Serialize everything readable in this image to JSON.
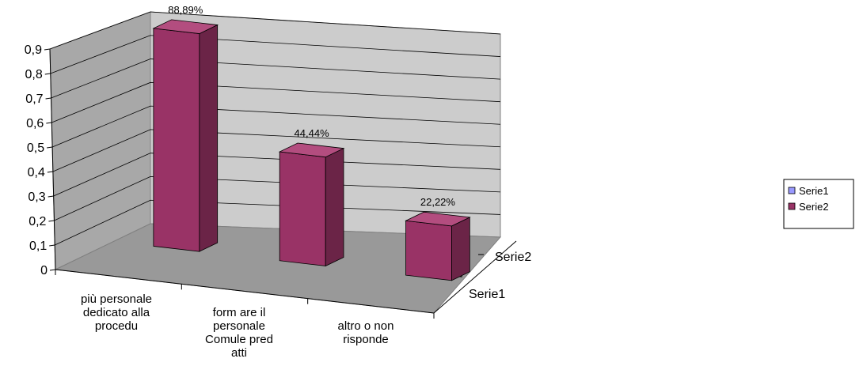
{
  "chart_data": {
    "type": "bar",
    "title": "",
    "xlabel": "",
    "ylabel": "",
    "ylim": [
      0,
      0.9
    ],
    "yticks": [
      "0",
      "0,1",
      "0,2",
      "0,3",
      "0,4",
      "0,5",
      "0,6",
      "0,7",
      "0,8",
      "0,9"
    ],
    "categories": [
      [
        "più personale",
        "dedicato alla",
        "procedu"
      ],
      [
        "form are il",
        "personale",
        "Comule pred",
        "atti"
      ],
      [
        "altro o non",
        "risponde"
      ]
    ],
    "depth_labels": [
      "Serie1",
      "Serie2"
    ],
    "series": [
      {
        "name": "Serie1",
        "values": [
          0,
          0,
          0
        ]
      },
      {
        "name": "Serie2",
        "values": [
          0.8889,
          0.4444,
          0.2222
        ],
        "data_labels": [
          "88,89%",
          "44,44%",
          "22,22%"
        ]
      }
    ],
    "legend": {
      "position": "right",
      "items": [
        "Serie1",
        "Serie2"
      ]
    },
    "colors": {
      "serie1": "#9999ff",
      "serie2": "#993366",
      "serie2_top": "#b34d7f",
      "serie2_side": "#6b2447",
      "back_wall": "#cccccc",
      "side_wall": "#a8a8a8",
      "floor": "#999999"
    },
    "grid": true
  }
}
